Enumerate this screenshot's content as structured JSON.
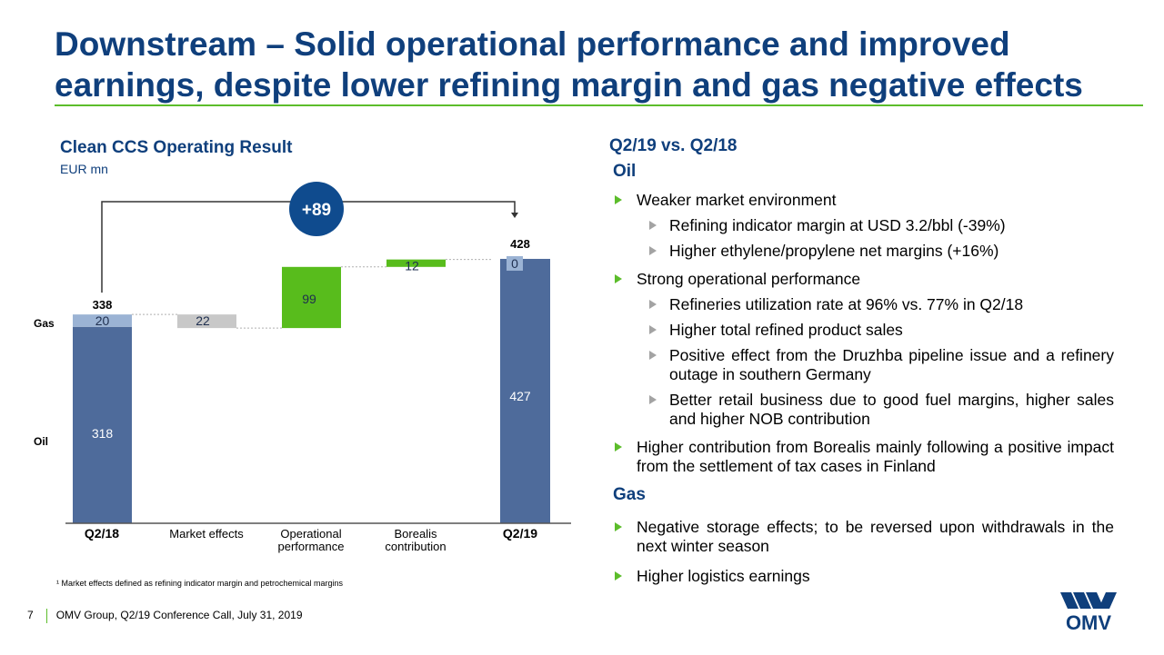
{
  "title": {
    "line1": "Downstream – Solid operational performance and improved",
    "line2": "earnings, despite lower refining margin and gas negative effects"
  },
  "chart_title": "Clean CCS Operating Result",
  "chart_unit": "EUR mn",
  "chart_data": {
    "type": "bar",
    "subtype": "waterfall",
    "title": "Clean CCS Operating Result",
    "unit": "EUR mn",
    "categories": [
      "Q2/18",
      "Market effects",
      "Operational performance",
      "Borealis contribution",
      "Q2/19"
    ],
    "category_lines": [
      [
        "Q2/18"
      ],
      [
        "Market effects"
      ],
      [
        "Operational",
        "performance"
      ],
      [
        "Borealis",
        "contribution"
      ],
      [
        "Q2/19"
      ]
    ],
    "totals": [
      {
        "category": "Q2/18",
        "oil": 318,
        "gas": 20,
        "total": 338
      },
      {
        "category": "Q2/19",
        "oil": 427,
        "gas": 0,
        "total": 428
      }
    ],
    "steps": [
      {
        "category": "Market effects",
        "value": -22,
        "label": "22"
      },
      {
        "category": "Operational performance",
        "value": 99,
        "label": "99"
      },
      {
        "category": "Borealis contribution",
        "value": 12,
        "label": "12"
      }
    ],
    "segment_labels": [
      "Gas",
      "Oil"
    ],
    "delta_label": "+89",
    "ylim": [
      0,
      440
    ],
    "colors": {
      "oil": "#4e6b9b",
      "gas": "#9bb3d4",
      "negative": "#c8c8c8",
      "positive": "#58bc1c",
      "delta": "#0f4b8e"
    }
  },
  "right": {
    "section_title": "Q2/19 vs. Q2/18",
    "oil_title": "Oil",
    "gas_title": "Gas",
    "bullets": {
      "weaker": "Weaker market environment",
      "refining_margin": "Refining indicator margin at USD 3.2/bbl (-39%)",
      "ethylene": "Higher ethylene/propylene net margins (+16%)",
      "strong_ops": "Strong operational performance",
      "utilization": "Refineries utilization rate at 96% vs. 77% in Q2/18",
      "product_sales": "Higher total refined product sales",
      "druzhba": "Positive effect from the Druzhba pipeline issue and a refinery outage in southern Germany",
      "retail": "Better retail business due to good fuel margins, higher sales and higher NOB contribution",
      "borealis": "Higher contribution from Borealis mainly following a positive impact from the settlement of tax cases in Finland",
      "storage": "Negative storage effects; to be reversed upon withdrawals in the next winter season",
      "logistics": "Higher logistics earnings"
    }
  },
  "footnote": "¹ Market effects defined as refining indicator margin and petrochemical margins",
  "footer": {
    "page": "7",
    "text": "OMV Group, Q2/19 Conference Call, July 31, 2019"
  },
  "logo_text": "OMV",
  "icons": {
    "bullet": "triangle-bullet-icon",
    "logo": "omv-logo-icon"
  }
}
